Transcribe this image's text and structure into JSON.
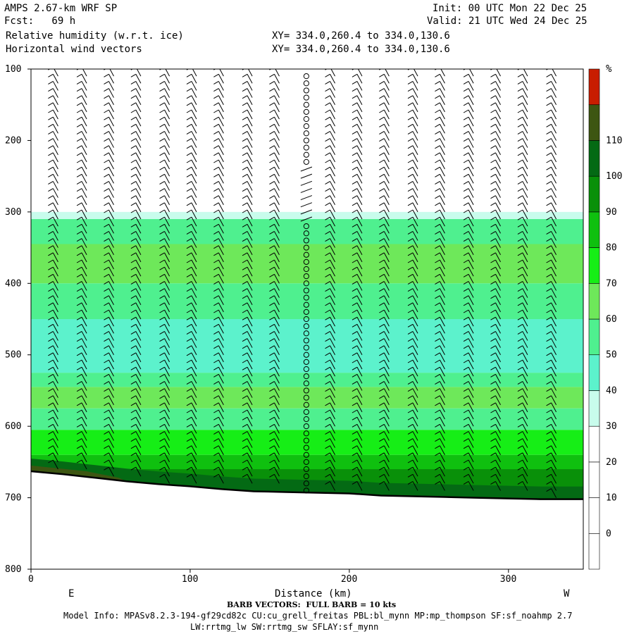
{
  "header": {
    "left_lines": [
      "AMPS 2.67-km WRF SP",
      "Fcst:   69 h",
      "Relative humidity (w.r.t. ice)",
      "Horizontal wind vectors"
    ],
    "right_lines": [
      "Init: 00 UTC Mon 22 Dec 25",
      "Valid: 21 UTC Wed 24 Dec 25"
    ],
    "xy_lines": [
      "XY= 334.0,260.4 to 334.0,130.6",
      "XY= 334.0,260.4 to 334.0,130.6"
    ]
  },
  "footer": {
    "barb_note": "BARB VECTORS:  FULL BARB = 10 kts",
    "model_info_1": "Model Info: MPASv8.2.3-194-gf29cd82c CU:cu_grell_freitas PBL:bl_mynn MP:mp_thompson SF:sf_noahmp 2.7",
    "model_info_2": "LW:rrtmg_lw SW:rrtmg_sw SFLAY:sf_mynn"
  },
  "chart_data": {
    "type": "heatmap",
    "title": "Relative humidity (w.r.t. ice)",
    "xlabel": "Distance (km)",
    "ylabel": "",
    "x_ticks": [
      0,
      100,
      200,
      300
    ],
    "y_ticks": [
      100,
      200,
      300,
      400,
      500,
      600,
      700,
      800
    ],
    "xlim": [
      0,
      347
    ],
    "ylim": [
      800,
      100
    ],
    "x_end_labels": {
      "left": "E",
      "right": "W"
    },
    "colorbar": {
      "unit": "%",
      "levels": [
        0,
        10,
        20,
        30,
        40,
        50,
        60,
        70,
        80,
        90,
        100,
        110
      ],
      "colors": [
        "#ffffff",
        "#ffffff",
        "#ffffff",
        "#ffffff",
        "#c8fcec",
        "#5cf2cc",
        "#4ff08f",
        "#6ee85a",
        "#16ee16",
        "#0fc00f",
        "#099009",
        "#046a14",
        "#3d5612",
        "#c81d00"
      ]
    },
    "terrain_pressure": [
      [
        0,
        663
      ],
      [
        20,
        667
      ],
      [
        40,
        672
      ],
      [
        60,
        677
      ],
      [
        80,
        681
      ],
      [
        100,
        684
      ],
      [
        120,
        688
      ],
      [
        140,
        691
      ],
      [
        160,
        692
      ],
      [
        180,
        693
      ],
      [
        200,
        694
      ],
      [
        220,
        697
      ],
      [
        240,
        698
      ],
      [
        260,
        699
      ],
      [
        280,
        700
      ],
      [
        300,
        701
      ],
      [
        320,
        702
      ],
      [
        347,
        702
      ]
    ],
    "rh_layers": [
      {
        "bottom": 310,
        "top": 300,
        "rh": 35
      },
      {
        "bottom": 345,
        "top": 310,
        "rh": 55
      },
      {
        "bottom": 400,
        "top": 345,
        "rh": 65
      },
      {
        "bottom": 450,
        "top": 400,
        "rh": 55
      },
      {
        "bottom": 525,
        "top": 450,
        "rh": 45
      },
      {
        "bottom": 545,
        "top": 525,
        "rh": 55
      },
      {
        "bottom": 575,
        "top": 545,
        "rh": 65
      },
      {
        "bottom": 605,
        "top": 575,
        "rh": 55
      },
      {
        "bottom": 640,
        "top": 605,
        "rh": 75
      },
      {
        "bottom": 660,
        "top": 640,
        "rh": 85
      },
      {
        "bottom": 700,
        "top": 660,
        "rh": 95
      }
    ],
    "barb_columns_km": [
      17,
      35,
      52,
      69,
      87,
      104,
      121,
      139,
      156,
      173,
      191,
      208,
      225,
      243,
      260,
      278,
      295,
      312,
      330
    ],
    "calm_column_km": 173
  }
}
